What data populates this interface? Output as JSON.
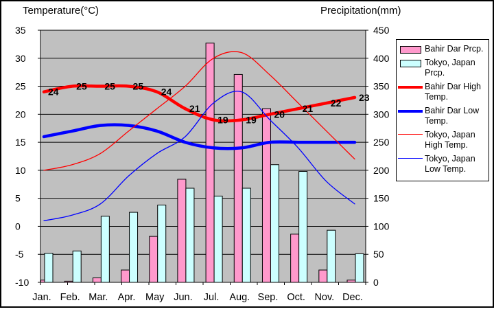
{
  "titles": {
    "left": "Temperature(°C)",
    "right": "Precipitation(mm)"
  },
  "legend": {
    "items": [
      {
        "label": "Bahir Dar Prcp.",
        "swatch": "box",
        "color": "#FF99CC"
      },
      {
        "label": "Tokyo, Japan Prcp.",
        "swatch": "box",
        "color": "#CCFFFF"
      },
      {
        "label": "Bahir Dar High Temp.",
        "swatch": "line-thick",
        "color": "#FF0000"
      },
      {
        "label": "Bahir Dar Low Temp.",
        "swatch": "line-thick",
        "color": "#0000FF"
      },
      {
        "label": "Tokyo, Japan High Temp.",
        "swatch": "line-thin",
        "color": "#FF0000"
      },
      {
        "label": "Tokyo, Japan Low Temp.",
        "swatch": "line-thin",
        "color": "#0000FF"
      }
    ]
  },
  "colors": {
    "plot_background": "#C0C0C0",
    "grid": "#000000",
    "bar_border": "#000000",
    "bahir_prcp": "#FF99CC",
    "tokyo_prcp": "#CCFFFF",
    "high_temp_line": "#FF0000",
    "low_temp_line": "#0000FF",
    "text": "#000000"
  },
  "chart_data": {
    "type": "combo bar+line climate chart",
    "categories": [
      "Jan.",
      "Feb.",
      "Mar.",
      "Apr.",
      "May",
      "Jun.",
      "Jul.",
      "Aug.",
      "Sep.",
      "Oct.",
      "Nov.",
      "Dec."
    ],
    "left_axis": {
      "title": "Temperature(°C)",
      "min": -10,
      "max": 35,
      "step": 5,
      "tick_labels": [
        "35",
        "30",
        "25",
        "20",
        "15",
        "10",
        "5",
        "0",
        "-5",
        "-10"
      ]
    },
    "right_axis": {
      "title": "Precipitation(mm)",
      "min": 0,
      "max": 450,
      "step": 50,
      "tick_labels": [
        "450",
        "400",
        "350",
        "300",
        "250",
        "200",
        "150",
        "100",
        "50",
        "0"
      ]
    },
    "grid": true,
    "legend_position": "right",
    "series": [
      {
        "name": "Bahir Dar Prcp.",
        "type": "bar",
        "axis": "right",
        "color": "#FF99CC",
        "values": [
          4,
          2,
          8,
          22,
          82,
          184,
          427,
          371,
          310,
          86,
          22,
          4
        ]
      },
      {
        "name": "Tokyo, Japan Prcp.",
        "type": "bar",
        "axis": "right",
        "color": "#CCFFFF",
        "values": [
          52,
          56,
          118,
          125,
          138,
          168,
          154,
          168,
          210,
          198,
          93,
          51
        ]
      },
      {
        "name": "Bahir Dar High Temp.",
        "type": "line",
        "weight": "thick",
        "axis": "left",
        "color": "#FF0000",
        "show_labels": true,
        "values": [
          24,
          25,
          25,
          25,
          24,
          21,
          19,
          19,
          20,
          21,
          22,
          23
        ]
      },
      {
        "name": "Bahir Dar Low Temp.",
        "type": "line",
        "weight": "thick",
        "axis": "left",
        "color": "#0000FF",
        "show_labels": false,
        "values": [
          16,
          17,
          18,
          18,
          17,
          15,
          14,
          14,
          15,
          15,
          15,
          15
        ]
      },
      {
        "name": "Tokyo, Japan High Temp.",
        "type": "line",
        "weight": "thin",
        "axis": "left",
        "color": "#FF0000",
        "show_labels": false,
        "values": [
          10,
          11,
          13,
          17,
          21,
          25,
          30,
          31,
          27,
          22,
          17,
          12
        ]
      },
      {
        "name": "Tokyo, Japan Low Temp.",
        "type": "line",
        "weight": "thin",
        "axis": "left",
        "color": "#0000FF",
        "show_labels": false,
        "values": [
          1,
          2,
          4,
          9,
          13,
          16,
          22,
          24,
          19,
          14,
          8,
          4
        ]
      }
    ]
  }
}
